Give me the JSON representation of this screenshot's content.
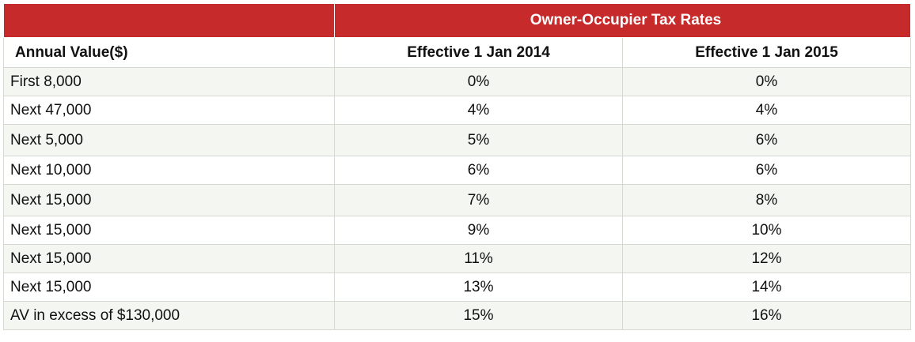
{
  "table": {
    "group_header": "Owner-Occupier Tax Rates",
    "columns": [
      "Annual Value($)",
      "Effective 1 Jan 2014",
      "Effective 1 Jan 2015"
    ],
    "rows": [
      {
        "band": "First 8,000",
        "rate_2014": "0%",
        "rate_2015": "0%"
      },
      {
        "band": "Next 47,000",
        "rate_2014": "4%",
        "rate_2015": "4%"
      },
      {
        "band": "Next 5,000",
        "rate_2014": "5%",
        "rate_2015": "6%"
      },
      {
        "band": "Next 10,000",
        "rate_2014": "6%",
        "rate_2015": "6%"
      },
      {
        "band": "Next 15,000",
        "rate_2014": "7%",
        "rate_2015": "8%"
      },
      {
        "band": "Next 15,000",
        "rate_2014": "9%",
        "rate_2015": "10%"
      },
      {
        "band": "Next 15,000",
        "rate_2014": "11%",
        "rate_2015": "12%"
      },
      {
        "band": "Next 15,000",
        "rate_2014": "13%",
        "rate_2015": "14%"
      },
      {
        "band": "AV in excess of $130,000",
        "rate_2014": "15%",
        "rate_2015": "16%"
      }
    ]
  },
  "colors": {
    "header_red": "#c62a2a",
    "row_alt": "#f4f6f1",
    "border": "#d6d9d2"
  }
}
